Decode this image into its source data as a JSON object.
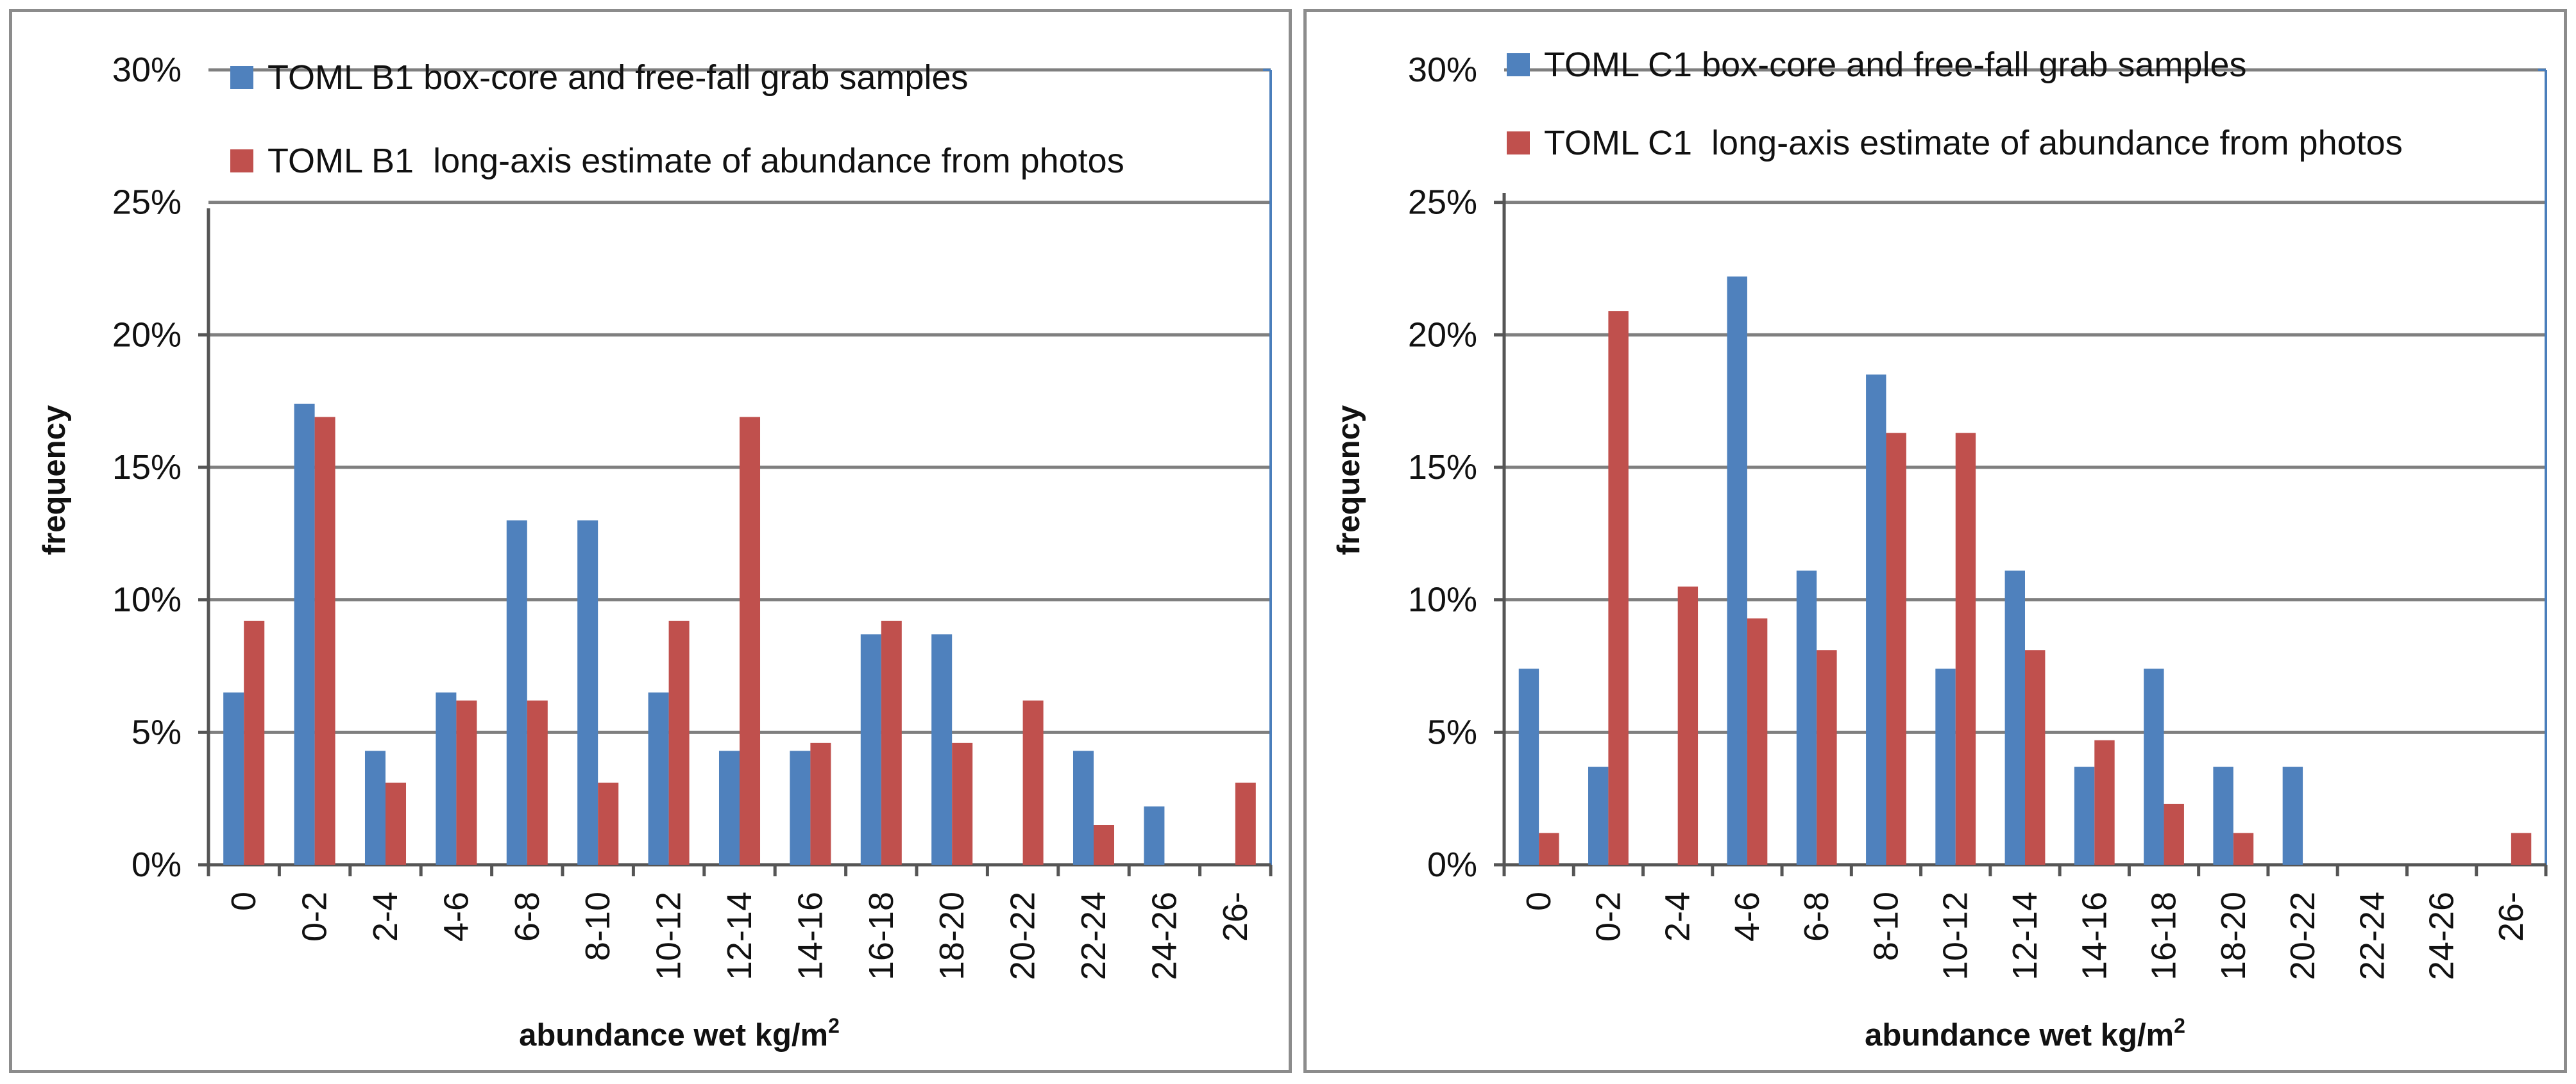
{
  "chart_data": [
    {
      "type": "bar",
      "categories": [
        "0",
        "0-2",
        "2-4",
        "4-6",
        "6-8",
        "8-10",
        "10-12",
        "12-14",
        "14-16",
        "16-18",
        "18-20",
        "20-22",
        "22-24",
        "24-26",
        "26-"
      ],
      "series": [
        {
          "name": "TOML B1 box-core and free-fall grab samples",
          "color": "#4f81bd",
          "values": [
            6.5,
            17.4,
            4.3,
            6.5,
            13.0,
            13.0,
            6.5,
            4.3,
            4.3,
            8.7,
            8.7,
            0,
            4.3,
            2.2,
            0
          ]
        },
        {
          "name": "TOML B1  long-axis estimate of abundance from photos",
          "color": "#c0504d",
          "values": [
            9.2,
            16.9,
            3.1,
            6.2,
            6.2,
            3.1,
            9.2,
            16.9,
            4.6,
            9.2,
            4.6,
            6.2,
            1.5,
            0,
            3.1
          ]
        }
      ],
      "title": "",
      "xlabel": "abundance wet kg/m",
      "xlabel_sup": "2",
      "ylabel": "frequency",
      "ylim": [
        0,
        30
      ],
      "yticks": [
        "0%",
        "5%",
        "10%",
        "15%",
        "20%",
        "25%",
        "30%"
      ],
      "grid": true,
      "legend": "top"
    },
    {
      "type": "bar",
      "categories": [
        "0",
        "0-2",
        "2-4",
        "4-6",
        "6-8",
        "8-10",
        "10-12",
        "12-14",
        "14-16",
        "16-18",
        "18-20",
        "20-22",
        "22-24",
        "24-26",
        "26-"
      ],
      "series": [
        {
          "name": "TOML C1 box-core and free-fall grab samples",
          "color": "#4f81bd",
          "values": [
            7.4,
            3.7,
            0,
            22.2,
            11.1,
            18.5,
            7.4,
            11.1,
            3.7,
            7.4,
            3.7,
            3.7,
            0,
            0,
            0
          ]
        },
        {
          "name": "TOML C1  long-axis estimate of abundance from photos",
          "color": "#c0504d",
          "values": [
            1.2,
            20.9,
            10.5,
            9.3,
            8.1,
            16.3,
            16.3,
            8.1,
            4.7,
            2.3,
            1.2,
            0,
            0,
            0,
            1.2
          ]
        }
      ],
      "title": "",
      "xlabel": "abundance wet kg/m",
      "xlabel_sup": "2",
      "ylabel": "frequency",
      "ylim": [
        0,
        30
      ],
      "yticks": [
        "0%",
        "5%",
        "10%",
        "15%",
        "20%",
        "25%",
        "30%"
      ],
      "grid": true,
      "legend": "top"
    }
  ]
}
